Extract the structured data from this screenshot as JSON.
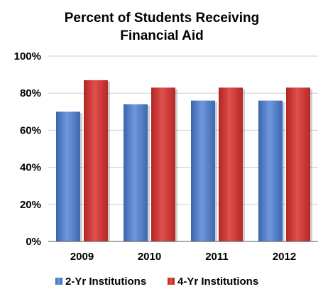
{
  "chart_data": {
    "type": "bar",
    "title": "Percent of Students Receiving Financial Aid",
    "title_lines": [
      "Percent of Students Receiving",
      "Financial Aid"
    ],
    "xlabel": "",
    "ylabel": "",
    "categories": [
      "2009",
      "2010",
      "2011",
      "2012"
    ],
    "series": [
      {
        "name": "2-Yr Institutions",
        "values": [
          70,
          74,
          76,
          76
        ],
        "color": "#4a78c4"
      },
      {
        "name": "4-Yr Institutions",
        "values": [
          87,
          83,
          83,
          83
        ],
        "color": "#c93332"
      }
    ],
    "ylim": [
      0,
      100
    ],
    "yticks": [
      0,
      20,
      40,
      60,
      80,
      100
    ],
    "ytick_labels": [
      "0%",
      "20%",
      "40%",
      "60%",
      "80%",
      "100%"
    ],
    "grid": true,
    "legend_position": "bottom"
  }
}
